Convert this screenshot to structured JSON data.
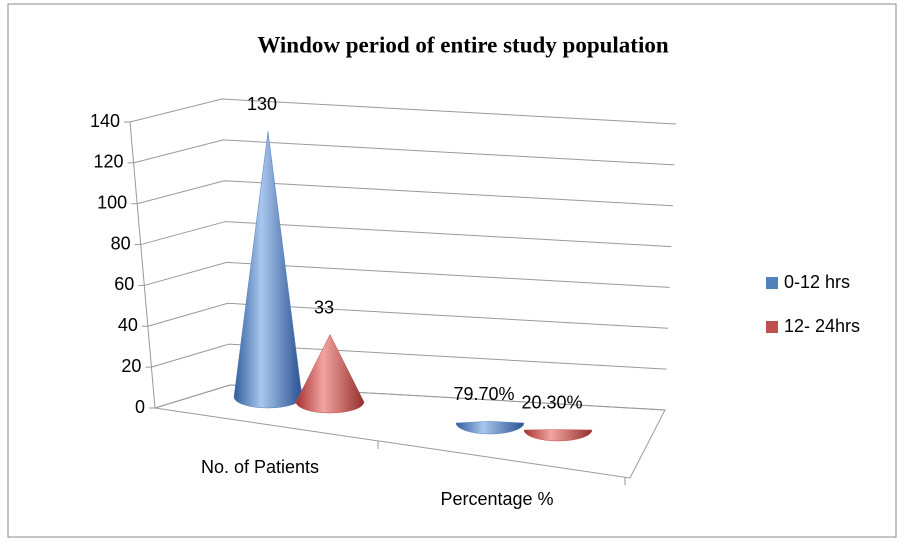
{
  "chart_data": {
    "type": "cone",
    "title": "Window period of entire study population",
    "categories": [
      "No. of Patients",
      "Percentage %"
    ],
    "series": [
      {
        "name": "0-12 hrs",
        "color": "#4f81bd",
        "values": [
          130,
          0.797
        ],
        "value_labels": [
          "130",
          "79.70%"
        ]
      },
      {
        "name": "12- 24hrs",
        "color": "#c0504d",
        "values": [
          33,
          0.203
        ],
        "value_labels": [
          "33",
          "20.30%"
        ]
      }
    ],
    "ylim": [
      0,
      140
    ],
    "yticks": [
      0,
      20,
      40,
      60,
      80,
      100,
      120,
      140
    ],
    "grid": true,
    "legend": "right"
  }
}
